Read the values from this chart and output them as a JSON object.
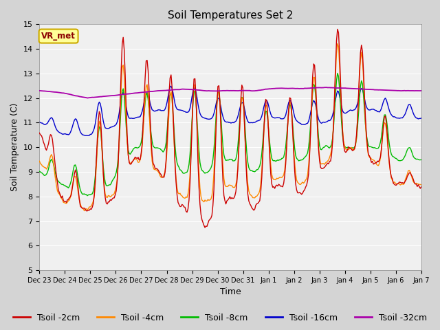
{
  "title": "Soil Temperatures Set 2",
  "xlabel": "Time",
  "ylabel": "Soil Temperature (C)",
  "ylim": [
    5.0,
    15.0
  ],
  "yticks": [
    5.0,
    6.0,
    7.0,
    8.0,
    9.0,
    10.0,
    11.0,
    12.0,
    13.0,
    14.0,
    15.0
  ],
  "xtick_labels": [
    "Dec 23",
    "Dec 24",
    "Dec 25",
    "Dec 26",
    "Dec 27",
    "Dec 28",
    "Dec 29",
    "Dec 30",
    "Dec 31",
    "Jan 1",
    "Jan 2",
    "Jan 3",
    "Jan 4",
    "Jan 5",
    "Jan 6",
    "Jan 7"
  ],
  "series_colors": {
    "Tsoil -2cm": "#cc0000",
    "Tsoil -4cm": "#ff8800",
    "Tsoil -8cm": "#00bb00",
    "Tsoil -16cm": "#0000cc",
    "Tsoil -32cm": "#aa00aa"
  },
  "legend_label": "VR_met",
  "fig_facecolor": "#d4d4d4",
  "ax_facecolor": "#f0f0f0",
  "grid_color": "#ffffff",
  "title_fontsize": 11,
  "axis_fontsize": 9,
  "tick_fontsize": 8,
  "legend_fontsize": 9
}
